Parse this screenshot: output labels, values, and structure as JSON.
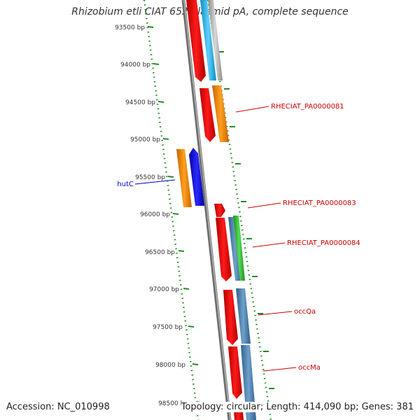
{
  "title": "Rhizobium etli CIAT 652 plasmid pA, complete sequence",
  "accession": "Accession: NC_010998",
  "topology": "Topology: circular; Length: 414,090 bp; Genes: 381",
  "ticks": [
    "93500 bp",
    "94000 bp",
    "94500 bp",
    "95000 bp",
    "95500 bp",
    "96000 bp",
    "96500 bp",
    "97000 bp",
    "97500 bp",
    "98000 bp",
    "98500 bp"
  ],
  "gene_labels": [
    {
      "name": "RHECIAT_PA0000081",
      "color": "#cc0000"
    },
    {
      "name": "hutC",
      "color": "#0000cc"
    },
    {
      "name": "RHECIAT_PA0000083",
      "color": "#cc0000"
    },
    {
      "name": "RHECIAT_PA0000084",
      "color": "#cc0000"
    },
    {
      "name": "occQa",
      "color": "#cc0000"
    },
    {
      "name": "occMa",
      "color": "#cc0000"
    }
  ],
  "colors": {
    "red": "#ff0000",
    "orange": "#ff8c00",
    "blue": "#0000ff",
    "green": "#33cc33",
    "steelblue": "#4682b4",
    "cyan": "#1eb4f0",
    "gray": "#a9a9a9",
    "backbone": "#808080",
    "dots": "#228b22"
  }
}
